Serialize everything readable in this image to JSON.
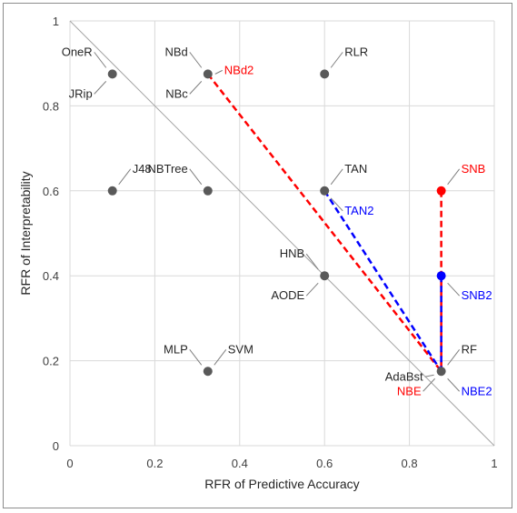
{
  "chart_data": {
    "type": "scatter",
    "xlabel": "RFR of Predictive Accuracy",
    "ylabel": "RFR of Interpretability",
    "xlim": [
      0,
      1
    ],
    "ylim": [
      0,
      1
    ],
    "x_ticks": [
      "0",
      "0.2",
      "0.4",
      "0.6",
      "0.8",
      "1"
    ],
    "y_ticks": [
      "0",
      "0.2",
      "0.4",
      "0.6",
      "0.8",
      "1"
    ],
    "grid": true,
    "colors": {
      "gray": "#595959",
      "red": "#ff0000",
      "blue": "#0000ff",
      "grid": "#d9d9d9",
      "diag": "#a6a6a6"
    },
    "points": [
      {
        "x": 0.1,
        "y": 0.875,
        "color": "gray"
      },
      {
        "x": 0.325,
        "y": 0.875,
        "color": "gray"
      },
      {
        "x": 0.6,
        "y": 0.875,
        "color": "gray"
      },
      {
        "x": 0.1,
        "y": 0.6,
        "color": "gray"
      },
      {
        "x": 0.325,
        "y": 0.6,
        "color": "gray"
      },
      {
        "x": 0.6,
        "y": 0.6,
        "color": "gray"
      },
      {
        "x": 0.6,
        "y": 0.4,
        "color": "gray"
      },
      {
        "x": 0.325,
        "y": 0.175,
        "color": "gray"
      },
      {
        "x": 0.875,
        "y": 0.175,
        "color": "gray"
      },
      {
        "x": 0.875,
        "y": 0.6,
        "color": "red"
      },
      {
        "x": 0.875,
        "y": 0.4,
        "color": "blue"
      }
    ],
    "labels": [
      {
        "text": "OneR",
        "x": 0.1,
        "y": 0.875,
        "color": "gray",
        "side": "upper-left"
      },
      {
        "text": "JRip",
        "x": 0.1,
        "y": 0.875,
        "color": "gray",
        "side": "below-left"
      },
      {
        "text": "NBd",
        "x": 0.325,
        "y": 0.875,
        "color": "gray",
        "side": "upper-left"
      },
      {
        "text": "NBc",
        "x": 0.325,
        "y": 0.875,
        "color": "gray",
        "side": "below-left"
      },
      {
        "text": "NBd2",
        "x": 0.325,
        "y": 0.875,
        "color": "red",
        "side": "right"
      },
      {
        "text": "RLR",
        "x": 0.6,
        "y": 0.875,
        "color": "gray",
        "side": "upper-right"
      },
      {
        "text": "J48",
        "x": 0.1,
        "y": 0.6,
        "color": "gray",
        "side": "upper-right"
      },
      {
        "text": "NBTree",
        "x": 0.325,
        "y": 0.6,
        "color": "gray",
        "side": "upper-left"
      },
      {
        "text": "TAN",
        "x": 0.6,
        "y": 0.6,
        "color": "gray",
        "side": "upper-right"
      },
      {
        "text": "TAN2",
        "x": 0.6,
        "y": 0.6,
        "color": "blue",
        "side": "below-right"
      },
      {
        "text": "HNB",
        "x": 0.6,
        "y": 0.4,
        "color": "gray",
        "side": "upper-left"
      },
      {
        "text": "AODE",
        "x": 0.6,
        "y": 0.4,
        "color": "gray",
        "side": "below-left"
      },
      {
        "text": "MLP",
        "x": 0.325,
        "y": 0.175,
        "color": "gray",
        "side": "upper-left"
      },
      {
        "text": "SVM",
        "x": 0.325,
        "y": 0.175,
        "color": "gray",
        "side": "upper-right"
      },
      {
        "text": "SNB",
        "x": 0.875,
        "y": 0.6,
        "color": "red",
        "side": "upper-right"
      },
      {
        "text": "SNB2",
        "x": 0.875,
        "y": 0.4,
        "color": "blue",
        "side": "below-right"
      },
      {
        "text": "RF",
        "x": 0.875,
        "y": 0.175,
        "color": "gray",
        "side": "upper-right"
      },
      {
        "text": "AdaBst",
        "x": 0.875,
        "y": 0.175,
        "color": "gray",
        "side": "left"
      },
      {
        "text": "NBE2",
        "x": 0.875,
        "y": 0.175,
        "color": "blue",
        "side": "below-right"
      },
      {
        "text": "NBE",
        "x": 0.875,
        "y": 0.175,
        "color": "red",
        "side": "below-left"
      }
    ],
    "lines": [
      {
        "x": [
          0,
          1
        ],
        "y": [
          1,
          0
        ],
        "style": "solid",
        "color": "diag"
      },
      {
        "x": [
          0.325,
          0.875
        ],
        "y": [
          0.875,
          0.175
        ],
        "style": "dashed",
        "color": "red"
      },
      {
        "x": [
          0.875,
          0.875
        ],
        "y": [
          0.6,
          0.175
        ],
        "style": "dashed",
        "color": "red"
      },
      {
        "x": [
          0.6,
          0.875
        ],
        "y": [
          0.6,
          0.175
        ],
        "style": "dashed",
        "color": "blue"
      },
      {
        "x": [
          0.875,
          0.875
        ],
        "y": [
          0.4,
          0.175
        ],
        "style": "dashed",
        "color": "blue"
      }
    ]
  }
}
